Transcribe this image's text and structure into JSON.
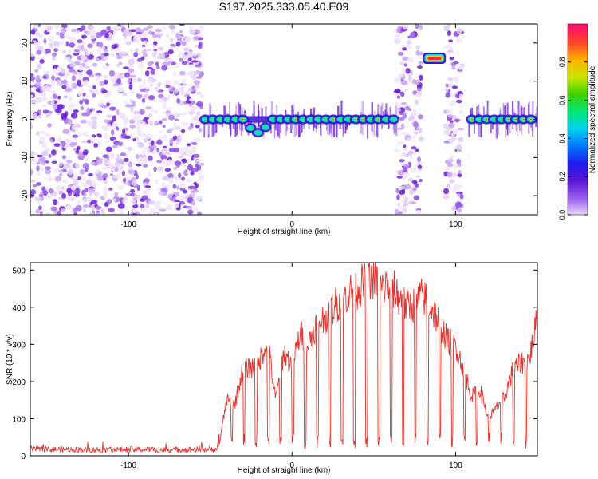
{
  "title": "S197.2025.333.05.40.E09",
  "chart_data": [
    {
      "type": "heatmap",
      "xlabel": "Height of straight line (km)",
      "ylabel": "Frequency (Hz)",
      "xlim": [
        -160,
        150
      ],
      "ylim": [
        -25,
        25
      ],
      "xticks": [
        -100,
        0,
        100
      ],
      "yticks": [
        -20,
        -10,
        0,
        10,
        20
      ],
      "colorbar": {
        "label": "Normalized spectral amplitude",
        "range": [
          0,
          1
        ],
        "ticks": [
          0.0,
          0.2,
          0.4,
          0.6,
          0.8
        ],
        "tick_labels": [
          "0.0",
          "0.2",
          "0.4",
          "0.6",
          "0.8"
        ]
      },
      "noise_regions_km": [
        [
          -160,
          -55
        ],
        [
          64,
          79
        ],
        [
          94,
          104
        ]
      ],
      "carrier_track": {
        "freq_hz": 0,
        "x_range_km": [
          -55,
          64
        ],
        "dip": {
          "x_km": -21,
          "freq_hz": -3.5
        }
      },
      "carrier_track_2": {
        "freq_hz": 0,
        "x_range_km": [
          108,
          150
        ]
      },
      "offset_tone": {
        "freq_hz": 16,
        "x_range_km": [
          81,
          93
        ]
      }
    },
    {
      "type": "line",
      "xlabel": "Height of straight line (km)",
      "ylabel": "SNR (10 * v/v)",
      "xlim": [
        -160,
        150
      ],
      "ylim": [
        0,
        520
      ],
      "xticks": [
        -100,
        0,
        100
      ],
      "yticks": [
        0,
        100,
        200,
        300,
        400,
        500
      ],
      "series": [
        {
          "name": "SNR",
          "color": "#e8302a",
          "x": [
            -160,
            -140,
            -120,
            -100,
            -80,
            -60,
            -45,
            -40,
            -35,
            -30,
            -25,
            -20,
            -15,
            -10,
            -5,
            0,
            5,
            10,
            15,
            20,
            25,
            30,
            35,
            40,
            45,
            50,
            55,
            60,
            65,
            70,
            75,
            80,
            85,
            90,
            95,
            100,
            105,
            110,
            115,
            120,
            125,
            130,
            135,
            140,
            145,
            150
          ],
          "y": [
            18,
            17,
            16,
            17,
            16,
            17,
            18,
            150,
            140,
            235,
            235,
            255,
            310,
            150,
            280,
            240,
            330,
            300,
            360,
            370,
            400,
            420,
            440,
            450,
            470,
            480,
            450,
            460,
            430,
            400,
            410,
            430,
            400,
            360,
            310,
            300,
            230,
            160,
            180,
            100,
            130,
            160,
            230,
            250,
            260,
            370
          ]
        }
      ]
    }
  ]
}
